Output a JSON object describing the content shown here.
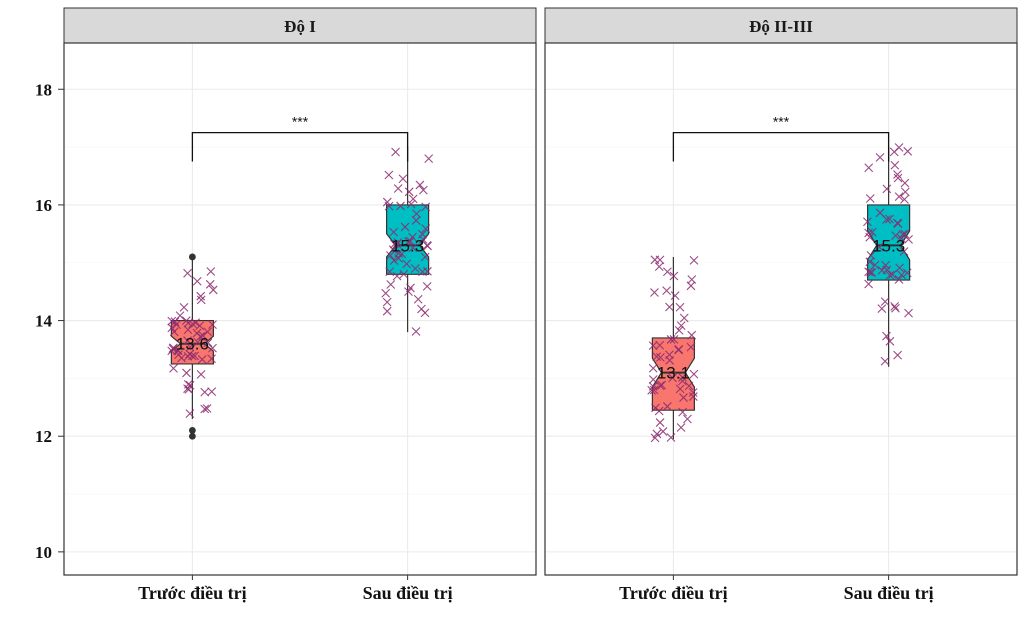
{
  "chart_data": {
    "type": "boxplot",
    "x_categories": [
      "Trước điều trị",
      "Sau điều trị"
    ],
    "ylim": [
      9.6,
      18.8
    ],
    "yticks": [
      10,
      12,
      14,
      16,
      18
    ],
    "grid": true,
    "legend": "none",
    "fill_colors": [
      "#F8766D",
      "#00BFC4"
    ],
    "jitter_color": "#8B2A6E",
    "panels": [
      {
        "strip": "Độ I",
        "significance": "***",
        "boxes": [
          {
            "category": "Trước điều trị",
            "q1": 13.25,
            "median": 13.6,
            "q3": 14.0,
            "whisker_low": 12.3,
            "whisker_high": 15.05,
            "notch_low": 13.47,
            "notch_high": 13.73,
            "median_label": "13.6",
            "outliers": [
              12.0,
              12.1,
              15.1
            ]
          },
          {
            "category": "Sau điều trị",
            "q1": 14.8,
            "median": 15.3,
            "q3": 16.0,
            "whisker_low": 13.8,
            "whisker_high": 17.0,
            "notch_low": 15.1,
            "notch_high": 15.5,
            "median_label": "15.3",
            "outliers": []
          }
        ]
      },
      {
        "strip": "Độ II-III",
        "significance": "***",
        "boxes": [
          {
            "category": "Trước điều trị",
            "q1": 12.45,
            "median": 13.1,
            "q3": 13.7,
            "whisker_low": 11.95,
            "whisker_high": 15.1,
            "notch_low": 12.85,
            "notch_high": 13.35,
            "median_label": "13.1",
            "outliers": []
          },
          {
            "category": "Sau điều trị",
            "q1": 14.7,
            "median": 15.3,
            "q3": 16.0,
            "whisker_low": 13.2,
            "whisker_high": 17.0,
            "notch_low": 15.05,
            "notch_high": 15.55,
            "median_label": "15.3",
            "outliers": []
          }
        ]
      }
    ]
  }
}
